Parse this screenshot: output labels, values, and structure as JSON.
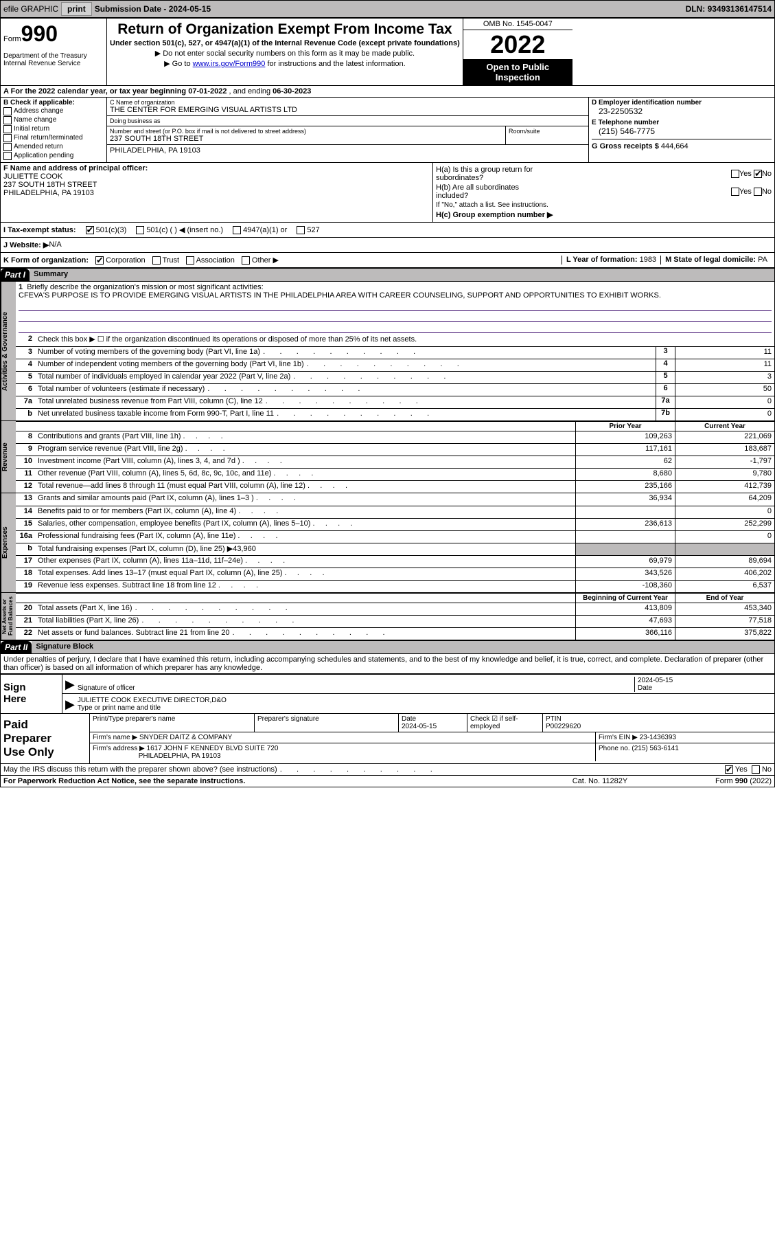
{
  "topbar": {
    "efile": "efile GRAPHIC",
    "print_btn": "print",
    "submission_label": "Submission Date - ",
    "submission_date": "2024-05-15",
    "dln_label": "DLN: ",
    "dln": "93493136147514"
  },
  "header": {
    "form_label": "Form",
    "form_num": "990",
    "title": "Return of Organization Exempt From Income Tax",
    "subtitle1": "Under section 501(c), 527, or 4947(a)(1) of the Internal Revenue Code (except private foundations)",
    "subtitle2a": "▶ Do not enter social security numbers on this form as it may be made public.",
    "subtitle2b": "▶ Go to ",
    "link": "www.irs.gov/Form990",
    "subtitle2c": " for instructions and the latest information.",
    "dept": "Department of the Treasury\nInternal Revenue Service",
    "omb": "OMB No. 1545-0047",
    "year": "2022",
    "open": "Open to Public Inspection"
  },
  "line_a": {
    "text_a": "A For the 2022 calendar year, or tax year beginning ",
    "begin": "07-01-2022",
    "text_b": "   , and ending ",
    "end": "06-30-2023"
  },
  "col_b": {
    "label": "B Check if applicable:",
    "items": [
      "Address change",
      "Name change",
      "Initial return",
      "Final return/terminated",
      "Amended return",
      "Application pending"
    ]
  },
  "col_c": {
    "name_label": "C Name of organization",
    "name": "THE CENTER FOR EMERGING VISUAL ARTISTS LTD",
    "dba_label": "Doing business as",
    "dba": "",
    "addr_label": "Number and street (or P.O. box if mail is not delivered to street address)",
    "room_label": "Room/suite",
    "addr": "237 SOUTH 18TH STREET",
    "city_label": "City or town, state or province, country, and ZIP or foreign postal code",
    "city": "PHILADELPHIA, PA  19103"
  },
  "col_d": {
    "ein_label": "D Employer identification number",
    "ein": "23-2250532",
    "phone_label": "E Telephone number",
    "phone": "(215) 546-7775",
    "gross_label": "G Gross receipts $ ",
    "gross": "444,664"
  },
  "officer": {
    "label": "F  Name and address of principal officer:",
    "name": "JULIETTE COOK",
    "addr1": "237 SOUTH 18TH STREET",
    "addr2": "PHILADELPHIA, PA  19103"
  },
  "col_h": {
    "ha": "H(a)  Is this a group return for\n        subordinates?",
    "hb": "H(b)  Are all subordinates\n        included?",
    "hb_note": "If \"No,\" attach a list. See instructions.",
    "hc": "H(c)  Group exemption number ▶",
    "yes": "Yes",
    "no": "No"
  },
  "line_i": {
    "label": "I   Tax-exempt status:",
    "opt1": "501(c)(3)",
    "opt2": "501(c) (   ) ◀ (insert no.)",
    "opt3": "4947(a)(1) or",
    "opt4": "527"
  },
  "line_j": {
    "label": "J   Website: ▶",
    "value": "  N/A"
  },
  "line_k": {
    "label": "K Form of organization:",
    "corp": "Corporation",
    "trust": "Trust",
    "assoc": "Association",
    "other": "Other ▶",
    "l_label": "L Year of formation: ",
    "l_val": "1983",
    "m_label": "M State of legal domicile: ",
    "m_val": "PA"
  },
  "part1": {
    "hdr": "Part I",
    "title": "Summary"
  },
  "mission": {
    "num": "1",
    "label": "Briefly describe the organization's mission or most significant activities:",
    "text": "CFEVA'S PURPOSE IS TO PROVIDE EMERGING VISUAL ARTISTS IN THE PHILADELPHIA AREA WITH CAREER COUNSELING, SUPPORT AND OPPORTUNITIES TO EXHIBIT WORKS."
  },
  "governance_rows": [
    {
      "num": "2",
      "desc": "Check this box ▶ ☐ if the organization discontinued its operations or disposed of more than 25% of its net assets."
    },
    {
      "num": "3",
      "desc": "Number of voting members of the governing body (Part VI, line 1a)",
      "box": "3",
      "val": "11"
    },
    {
      "num": "4",
      "desc": "Number of independent voting members of the governing body (Part VI, line 1b)",
      "box": "4",
      "val": "11"
    },
    {
      "num": "5",
      "desc": "Total number of individuals employed in calendar year 2022 (Part V, line 2a)",
      "box": "5",
      "val": "3"
    },
    {
      "num": "6",
      "desc": "Total number of volunteers (estimate if necessary)",
      "box": "6",
      "val": "50"
    },
    {
      "num": "7a",
      "desc": "Total unrelated business revenue from Part VIII, column (C), line 12",
      "box": "7a",
      "val": "0"
    },
    {
      "num": "b",
      "desc": "Net unrelated business taxable income from Form 990-T, Part I, line 11",
      "box": "7b",
      "val": "0"
    }
  ],
  "revenue_hdr": {
    "prior": "Prior Year",
    "current": "Current Year"
  },
  "revenue_rows": [
    {
      "num": "8",
      "desc": "Contributions and grants (Part VIII, line 1h)",
      "prior": "109,263",
      "current": "221,069"
    },
    {
      "num": "9",
      "desc": "Program service revenue (Part VIII, line 2g)",
      "prior": "117,161",
      "current": "183,687"
    },
    {
      "num": "10",
      "desc": "Investment income (Part VIII, column (A), lines 3, 4, and 7d )",
      "prior": "62",
      "current": "-1,797"
    },
    {
      "num": "11",
      "desc": "Other revenue (Part VIII, column (A), lines 5, 6d, 8c, 9c, 10c, and 11e)",
      "prior": "8,680",
      "current": "9,780"
    },
    {
      "num": "12",
      "desc": "Total revenue—add lines 8 through 11 (must equal Part VIII, column (A), line 12)",
      "prior": "235,166",
      "current": "412,739"
    }
  ],
  "expense_rows": [
    {
      "num": "13",
      "desc": "Grants and similar amounts paid (Part IX, column (A), lines 1–3 )",
      "prior": "36,934",
      "current": "64,209"
    },
    {
      "num": "14",
      "desc": "Benefits paid to or for members (Part IX, column (A), line 4)",
      "prior": "",
      "current": "0"
    },
    {
      "num": "15",
      "desc": "Salaries, other compensation, employee benefits (Part IX, column (A), lines 5–10)",
      "prior": "236,613",
      "current": "252,299"
    },
    {
      "num": "16a",
      "desc": "Professional fundraising fees (Part IX, column (A), line 11e)",
      "prior": "",
      "current": "0"
    },
    {
      "num": "b",
      "desc": "Total fundraising expenses (Part IX, column (D), line 25) ▶43,960",
      "gray": true
    },
    {
      "num": "17",
      "desc": "Other expenses (Part IX, column (A), lines 11a–11d, 11f–24e)",
      "prior": "69,979",
      "current": "89,694"
    },
    {
      "num": "18",
      "desc": "Total expenses. Add lines 13–17 (must equal Part IX, column (A), line 25)",
      "prior": "343,526",
      "current": "406,202"
    },
    {
      "num": "19",
      "desc": "Revenue less expenses. Subtract line 18 from line 12",
      "prior": "-108,360",
      "current": "6,537"
    }
  ],
  "net_hdr": {
    "begin": "Beginning of Current Year",
    "end": "End of Year"
  },
  "net_rows": [
    {
      "num": "20",
      "desc": "Total assets (Part X, line 16)",
      "prior": "413,809",
      "current": "453,340"
    },
    {
      "num": "21",
      "desc": "Total liabilities (Part X, line 26)",
      "prior": "47,693",
      "current": "77,518"
    },
    {
      "num": "22",
      "desc": "Net assets or fund balances. Subtract line 21 from line 20",
      "prior": "366,116",
      "current": "375,822"
    }
  ],
  "part2": {
    "hdr": "Part II",
    "title": "Signature Block",
    "declaration": "Under penalties of perjury, I declare that I have examined this return, including accompanying schedules and statements, and to the best of my knowledge and belief, it is true, correct, and complete. Declaration of preparer (other than officer) is based on all information of which preparer has any knowledge."
  },
  "sign": {
    "left": "Sign\nHere",
    "sig_officer": "Signature of officer",
    "date": "2024-05-15",
    "date_label": "Date",
    "name": "JULIETTE COOK  EXECUTIVE DIRECTOR,D&O",
    "name_label": "Type or print name and title"
  },
  "prep": {
    "left": "Paid\nPreparer\nUse Only",
    "h1": "Print/Type preparer's name",
    "h2": "Preparer's signature",
    "h3_label": "Date",
    "h3": "2024-05-15",
    "h4_label": "Check ☑ if self-employed",
    "h5_label": "PTIN",
    "h5": "P00229620",
    "firm_name_label": "Firm's name      ▶ ",
    "firm_name": "SNYDER DAITZ & COMPANY",
    "firm_ein_label": "Firm's EIN ▶ ",
    "firm_ein": "23-1436393",
    "firm_addr_label": "Firm's address ▶ ",
    "firm_addr1": "1617 JOHN F KENNEDY BLVD SUITE 720",
    "firm_addr2": "PHILADELPHIA, PA  19103",
    "phone_label": "Phone no. ",
    "phone": "(215) 563-6141"
  },
  "discuss": {
    "text": "May the IRS discuss this return with the preparer shown above? (see instructions)",
    "yes": "Yes",
    "no": "No"
  },
  "footer": {
    "left": "For Paperwork Reduction Act Notice, see the separate instructions.",
    "mid": "Cat. No. 11282Y",
    "right": "Form 990 (2022)"
  },
  "vtabs": {
    "gov": "Activities & Governance",
    "rev": "Revenue",
    "exp": "Expenses",
    "net": "Net Assets or\nFund Balances"
  }
}
